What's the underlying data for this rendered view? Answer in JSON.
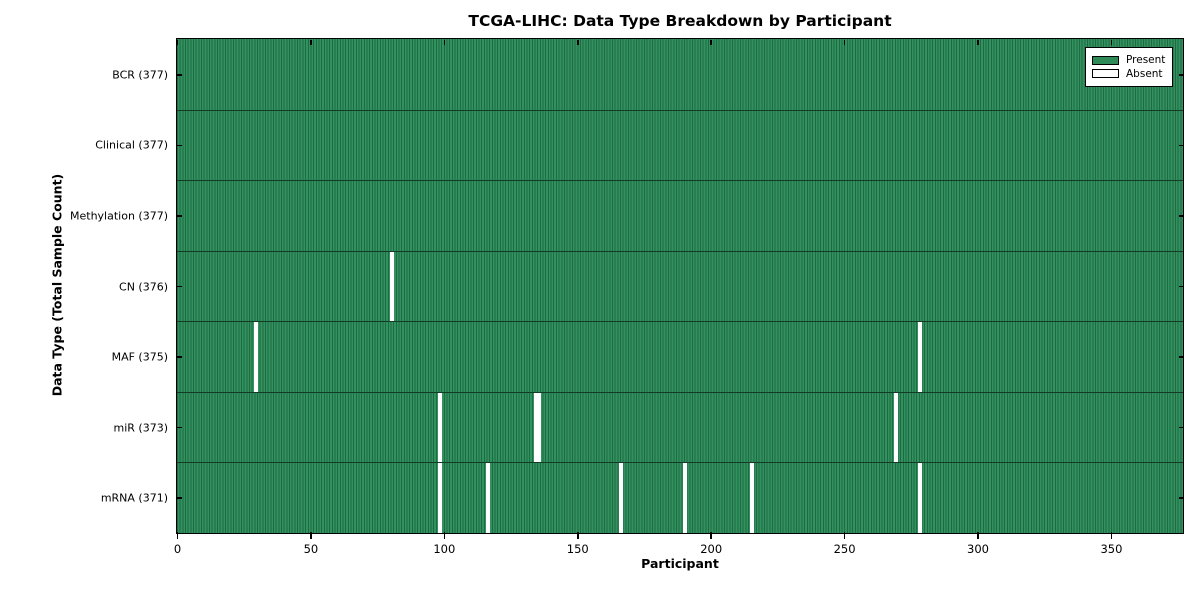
{
  "figure": {
    "title": "TCGA-LIHC: Data Type Breakdown by Participant",
    "xlabel": "Participant",
    "ylabel": "Data Type (Total Sample Count)"
  },
  "legend": {
    "present_label": "Present",
    "absent_label": "Absent"
  },
  "colors": {
    "present_fill": "#33915f",
    "present_edge": "#1d6b42",
    "legend_present": "#2e8b57",
    "absent_fill": "#ffffff",
    "row_separator": "#123c26",
    "axis": "#000000"
  },
  "chart_data": {
    "type": "heatmap",
    "title": "TCGA-LIHC: Data Type Breakdown by Participant",
    "xlabel": "Participant",
    "ylabel": "Data Type (Total Sample Count)",
    "x_range": [
      0,
      377
    ],
    "x_ticks": [
      0,
      50,
      100,
      150,
      200,
      250,
      300,
      350
    ],
    "legend_position": "upper right",
    "legend": [
      {
        "label": "Present",
        "color": "#2e8b57"
      },
      {
        "label": "Absent",
        "color": "#ffffff"
      }
    ],
    "rows": [
      {
        "label": "BCR (377)",
        "data_type": "BCR",
        "total": 377,
        "absent_participants": []
      },
      {
        "label": "Clinical (377)",
        "data_type": "Clinical",
        "total": 377,
        "absent_participants": []
      },
      {
        "label": "Methylation (377)",
        "data_type": "Methylation",
        "total": 377,
        "absent_participants": []
      },
      {
        "label": "CN (376)",
        "data_type": "CN",
        "total": 376,
        "absent_participants": [
          80
        ]
      },
      {
        "label": "MAF (375)",
        "data_type": "MAF",
        "total": 375,
        "absent_participants": [
          29,
          278
        ]
      },
      {
        "label": "miR (373)",
        "data_type": "miR",
        "total": 373,
        "absent_participants": [
          98,
          134,
          135,
          269
        ]
      },
      {
        "label": "mRNA (371)",
        "data_type": "mRNA",
        "total": 371,
        "absent_participants": [
          98,
          116,
          166,
          190,
          215,
          278
        ]
      }
    ]
  }
}
